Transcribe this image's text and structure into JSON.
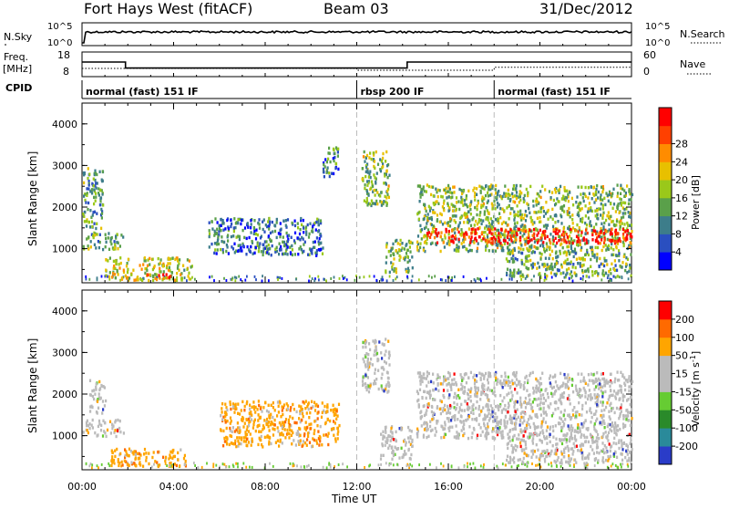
{
  "header": {
    "station": "Fort Hays West (fitACF)",
    "beam": "Beam 03",
    "date": "31/Dec/2012"
  },
  "strips": {
    "nsky_label": "N.Sky",
    "nsky_ticks": [
      "10^5",
      "10^0"
    ],
    "nsearch_label": "N.Search",
    "nsearch_ticks": [
      "10^5",
      "10^0"
    ],
    "freq_label": "Freq.",
    "freq_unit": "[MHz]",
    "freq_ticks": [
      "18",
      "8"
    ],
    "nave_label": "Nave",
    "nave_ticks": [
      "60",
      "0"
    ],
    "freq_series": [
      {
        "t": 0,
        "mhz": 14.5
      },
      {
        "t": 1.9,
        "mhz": 14.5
      },
      {
        "t": 1.9,
        "mhz": 11.2
      },
      {
        "t": 14.2,
        "mhz": 11.2
      },
      {
        "t": 14.2,
        "mhz": 14.5
      },
      {
        "t": 24,
        "mhz": 14.5
      }
    ],
    "nave_series": [
      {
        "t": 0,
        "nave": 18
      },
      {
        "t": 12,
        "nave": 18
      },
      {
        "t": 12,
        "nave": 12
      },
      {
        "t": 18,
        "nave": 12
      },
      {
        "t": 18,
        "nave": 22
      },
      {
        "t": 24,
        "nave": 22
      }
    ],
    "cpid_label": "CPID",
    "cpid_segments": [
      {
        "start": 0,
        "label": "normal (fast) 151 IF"
      },
      {
        "start": 12,
        "label": "rbsp 200 IF"
      },
      {
        "start": 18,
        "label": "normal (fast) 151 IF"
      }
    ]
  },
  "chart_data": [
    {
      "type": "heatmap",
      "title": "Power",
      "xlabel": "Time UT",
      "ylabel": "Slant Range [km]",
      "xlim": [
        0,
        24
      ],
      "ylim": [
        180,
        4500
      ],
      "xticks": [
        "00:00",
        "04:00",
        "08:00",
        "12:00",
        "16:00",
        "20:00",
        "00:00"
      ],
      "yticks": [
        1000,
        2000,
        3000,
        4000
      ],
      "colorbar": {
        "label": "Power [dB]",
        "ticks": [
          "4",
          "8",
          "12",
          "16",
          "20",
          "24",
          "28"
        ],
        "colors": [
          "#0000ff",
          "#2a4fc0",
          "#3d7d8a",
          "#5aa04a",
          "#9ac81a",
          "#e8c000",
          "#ff8c00",
          "#ff4000",
          "#ff0000"
        ]
      },
      "regions": [
        {
          "t0": 0.0,
          "t1": 0.9,
          "r0": 1450,
          "r1": 2900,
          "level": 0.35
        },
        {
          "t0": 0.0,
          "t1": 1.8,
          "r0": 950,
          "r1": 1350,
          "level": 0.4
        },
        {
          "t0": 1.0,
          "t1": 4.8,
          "r0": 200,
          "r1": 750,
          "level": 0.55
        },
        {
          "t0": 2.8,
          "t1": 3.9,
          "r0": 220,
          "r1": 380,
          "level": 0.85
        },
        {
          "t0": 5.5,
          "t1": 10.5,
          "r0": 800,
          "r1": 1700,
          "level": 0.25
        },
        {
          "t0": 10.5,
          "t1": 11.2,
          "r0": 2700,
          "r1": 3400,
          "level": 0.3
        },
        {
          "t0": 12.2,
          "t1": 13.4,
          "r0": 2000,
          "r1": 3300,
          "level": 0.45
        },
        {
          "t0": 13.2,
          "t1": 14.4,
          "r0": 400,
          "r1": 1200,
          "level": 0.45
        },
        {
          "t0": 14.6,
          "t1": 24.0,
          "r0": 900,
          "r1": 2500,
          "level": 0.45
        },
        {
          "t0": 15.0,
          "t1": 24.0,
          "r0": 1100,
          "r1": 1450,
          "level": 0.95
        },
        {
          "t0": 18.5,
          "t1": 24.0,
          "r0": 300,
          "r1": 900,
          "level": 0.4
        }
      ]
    },
    {
      "type": "heatmap",
      "title": "Velocity",
      "xlabel": "Time UT",
      "ylabel": "Slant Range [km]",
      "xlim": [
        0,
        24
      ],
      "ylim": [
        180,
        4500
      ],
      "xticks": [
        "00:00",
        "04:00",
        "08:00",
        "12:00",
        "16:00",
        "20:00",
        "00:00"
      ],
      "yticks": [
        1000,
        2000,
        3000,
        4000
      ],
      "colorbar": {
        "label": "Velocity [m s",
        "label_sup": "-1",
        "label_end": "]",
        "ticks": [
          "200",
          "100",
          "50",
          "15",
          "-15",
          "-50",
          "-100",
          "-200"
        ],
        "colors": [
          "#2a3cc8",
          "#2a8a9a",
          "#2a8a2a",
          "#66cc33",
          "#bbbbbb",
          "#bbbbbb",
          "#ffa500",
          "#ff6a00",
          "#ff0000"
        ]
      },
      "regions": [
        {
          "t0": 0.0,
          "t1": 1.8,
          "r0": 950,
          "r1": 1350,
          "kind": "gray"
        },
        {
          "t0": 0.3,
          "t1": 1.0,
          "r0": 1500,
          "r1": 2300,
          "kind": "gray"
        },
        {
          "t0": 1.2,
          "t1": 4.5,
          "r0": 220,
          "r1": 650,
          "kind": "orange"
        },
        {
          "t0": 6.0,
          "t1": 11.2,
          "r0": 700,
          "r1": 1800,
          "kind": "orange"
        },
        {
          "t0": 12.2,
          "t1": 13.4,
          "r0": 2000,
          "r1": 3300,
          "kind": "gray"
        },
        {
          "t0": 13.0,
          "t1": 14.4,
          "r0": 400,
          "r1": 1200,
          "kind": "gray"
        },
        {
          "t0": 14.6,
          "t1": 24.0,
          "r0": 900,
          "r1": 2500,
          "kind": "gray"
        },
        {
          "t0": 18.5,
          "t1": 24.0,
          "r0": 300,
          "r1": 900,
          "kind": "gray"
        }
      ]
    }
  ]
}
